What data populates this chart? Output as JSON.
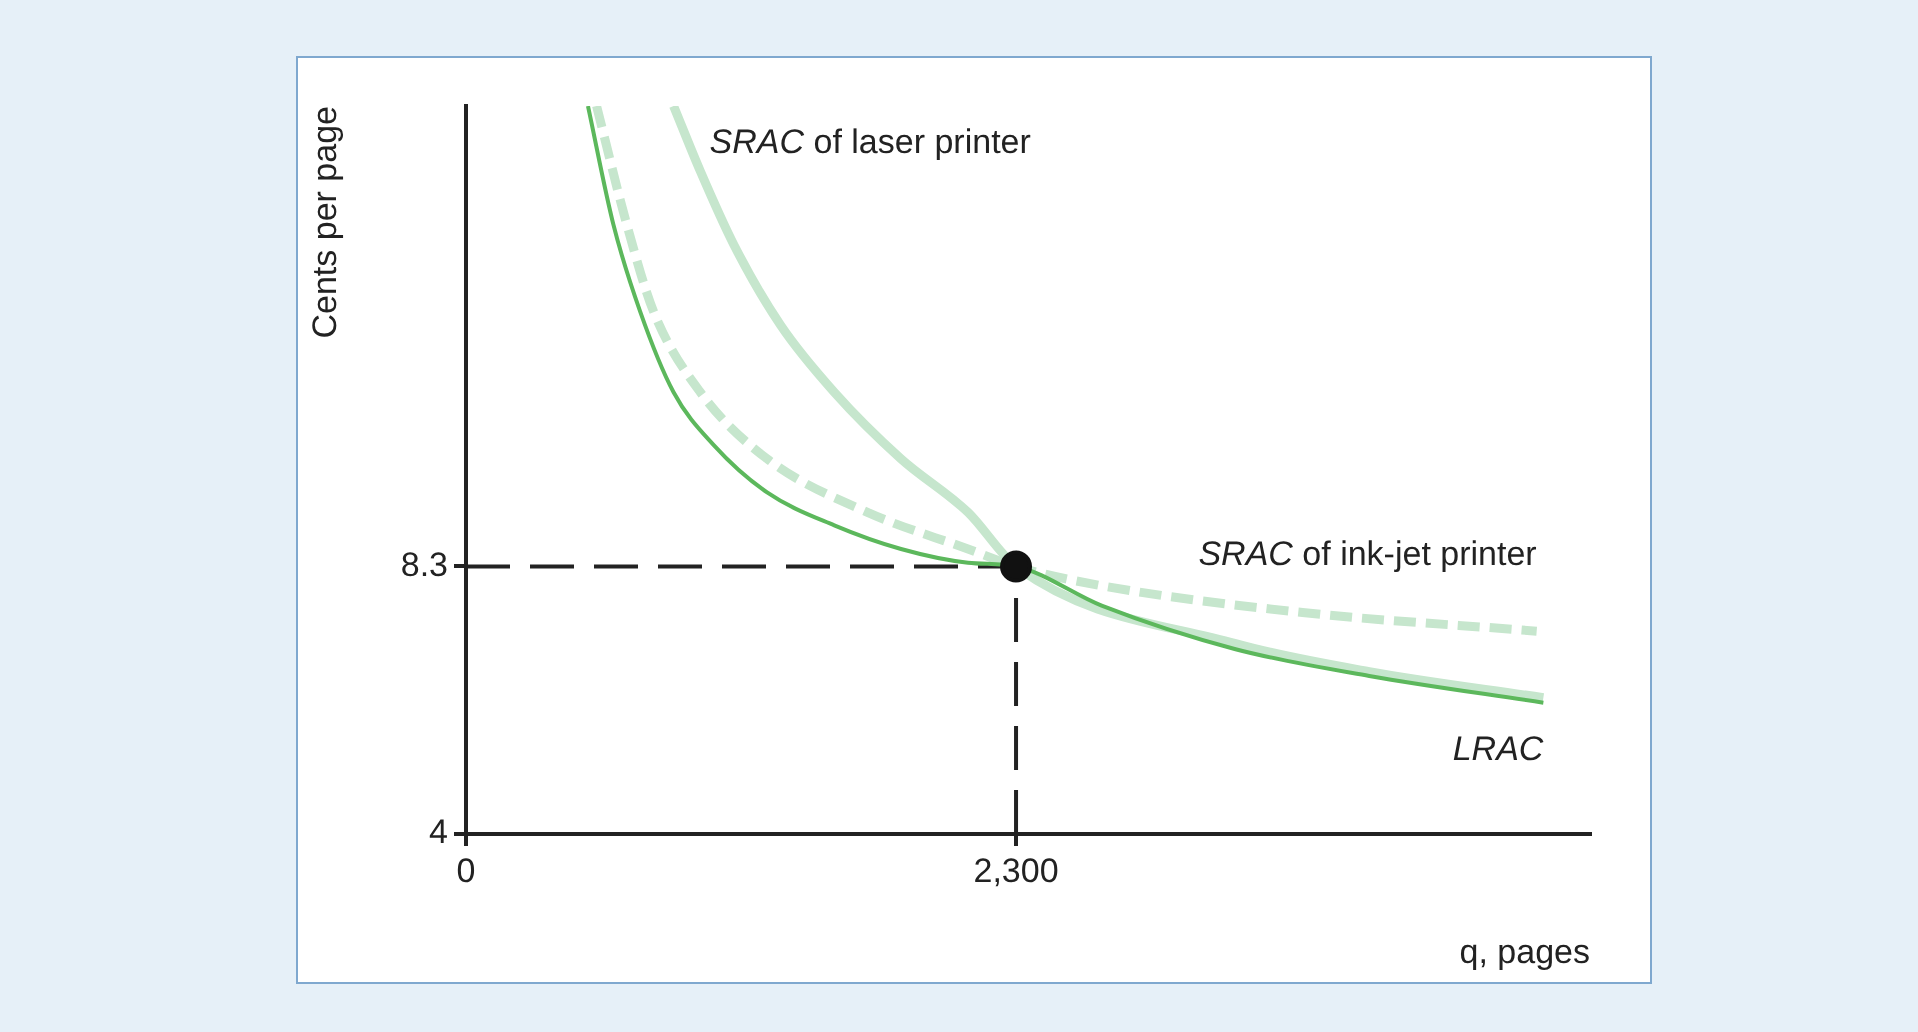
{
  "chart_data": {
    "type": "line",
    "xlabel": "q, pages",
    "ylabel": "Cents per page",
    "xlim": [
      0,
      4700
    ],
    "ylim": [
      4,
      15.7
    ],
    "xticks": [
      0,
      {
        "value": 2300,
        "label": "2,300"
      }
    ],
    "yticks": [
      4,
      8.3
    ],
    "grid": false,
    "legend": false,
    "marker": "none",
    "series": [
      {
        "type": "scatter",
        "marker": "circle",
        "color": "#111111",
        "x": [
          2300
        ],
        "values": [
          8.3
        ]
      },
      {
        "name": "LRAC",
        "color": "#5cb85c",
        "x": [
          510,
          616,
          728,
          868,
          1036,
          1259,
          1540,
          1819,
          2099,
          2300,
          2658,
          3218,
          3777,
          4505
        ],
        "values": [
          15.7,
          13.8,
          12.4,
          11.1,
          10.25,
          9.49,
          8.96,
          8.58,
          8.36,
          8.3,
          7.67,
          6.97,
          6.54,
          6.11
        ]
      },
      {
        "name": "SRAC of ink-jet printer",
        "color": "#c6e6cd",
        "line_style": "dashed",
        "x": [
          546,
          672,
          784,
          980,
          1259,
          1679,
          2099,
          2300,
          2658,
          3498,
          4477
        ],
        "values": [
          15.7,
          13.8,
          12.4,
          11.1,
          10.03,
          9.17,
          8.58,
          8.3,
          7.99,
          7.56,
          7.26
        ]
      },
      {
        "name": "SRAC of laser printer",
        "color": "#c6e6cd",
        "x": [
          868,
          980,
          1120,
          1315,
          1540,
          1819,
          2099,
          2300,
          3218,
          3777,
          4505
        ],
        "values": [
          15.7,
          14.65,
          13.47,
          12.18,
          11.1,
          10.03,
          9.17,
          8.3,
          7.06,
          6.61,
          6.19
        ]
      }
    ],
    "ref_lines": [
      {
        "axis": "y",
        "value": 8.3,
        "line_style": "dashed",
        "color": "#222222"
      },
      {
        "axis": "x",
        "value": 2300,
        "line_style": "dashed",
        "color": "#222222"
      }
    ]
  }
}
